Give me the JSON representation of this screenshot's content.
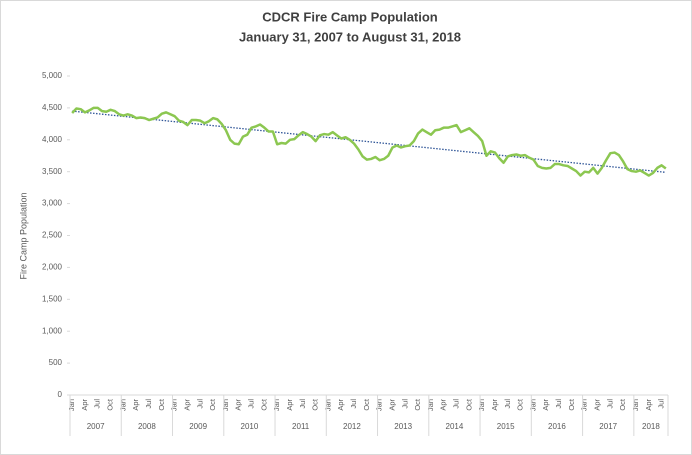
{
  "chart_data": {
    "type": "line",
    "title": "CDCR Fire Camp Population",
    "subtitle": "January 31, 2007 to August 31, 2018",
    "y_label": "Fire Camp Population",
    "color": "#8cc751",
    "trendline": {
      "start": 4450,
      "end": 3490,
      "color": "#2f5597"
    },
    "categories": [
      "Jan",
      null,
      null,
      "Apr",
      null,
      null,
      "Jul",
      null,
      null,
      "Oct",
      null,
      null,
      "Jan",
      null,
      null,
      "Apr",
      null,
      null,
      "Jul",
      null,
      null,
      "Oct",
      null,
      null,
      "Jan",
      null,
      null,
      "Apr",
      null,
      null,
      "Jul",
      null,
      null,
      "Oct",
      null,
      null,
      "Jan",
      null,
      null,
      "Apr",
      null,
      null,
      "Jul",
      null,
      null,
      "Oct",
      null,
      null,
      "Jan",
      null,
      null,
      "Apr",
      null,
      null,
      "Jul",
      null,
      null,
      "Oct",
      null,
      null,
      "Jan",
      null,
      null,
      "Apr",
      null,
      null,
      "Jul",
      null,
      null,
      "Oct",
      null,
      null,
      "Jan",
      null,
      null,
      "Apr",
      null,
      null,
      "Jul",
      null,
      null,
      "Oct",
      null,
      null,
      "Jan",
      null,
      null,
      "Apr",
      null,
      null,
      "Jul",
      null,
      null,
      "Oct",
      null,
      null,
      "Jan",
      null,
      null,
      "Apr",
      null,
      null,
      "Jul",
      null,
      null,
      "Oct",
      null,
      null,
      "Jan",
      null,
      null,
      "Apr",
      null,
      null,
      "Jul",
      null,
      null,
      "Oct",
      null,
      null,
      "Jan",
      null,
      null,
      "Apr",
      null,
      null,
      "Jul",
      null,
      null,
      "Oct",
      null,
      null,
      "Jan",
      null,
      null,
      "Apr",
      null,
      null,
      "Jul",
      null
    ],
    "groups": [
      "2007",
      "2008",
      "2009",
      "2010",
      "2011",
      "2012",
      "2013",
      "2014",
      "2015",
      "2016",
      "2017",
      "2018"
    ],
    "values": [
      4420,
      4490,
      4480,
      4430,
      4460,
      4500,
      4500,
      4450,
      4440,
      4470,
      4450,
      4400,
      4380,
      4400,
      4380,
      4340,
      4350,
      4340,
      4310,
      4330,
      4350,
      4410,
      4430,
      4400,
      4370,
      4300,
      4280,
      4230,
      4310,
      4310,
      4300,
      4260,
      4290,
      4340,
      4320,
      4250,
      4150,
      4000,
      3940,
      3930,
      4050,
      4080,
      4190,
      4210,
      4240,
      4190,
      4130,
      4130,
      3930,
      3950,
      3940,
      4000,
      4010,
      4070,
      4120,
      4090,
      4050,
      3980,
      4070,
      4090,
      4080,
      4120,
      4070,
      4020,
      4040,
      4000,
      3940,
      3850,
      3740,
      3690,
      3700,
      3730,
      3680,
      3700,
      3750,
      3880,
      3910,
      3880,
      3900,
      3910,
      3980,
      4100,
      4160,
      4120,
      4080,
      4150,
      4160,
      4190,
      4190,
      4210,
      4230,
      4120,
      4150,
      4180,
      4120,
      4060,
      3980,
      3750,
      3820,
      3800,
      3710,
      3640,
      3740,
      3760,
      3770,
      3750,
      3760,
      3720,
      3690,
      3590,
      3560,
      3550,
      3560,
      3620,
      3620,
      3600,
      3590,
      3550,
      3510,
      3440,
      3500,
      3490,
      3560,
      3470,
      3560,
      3680,
      3790,
      3800,
      3760,
      3660,
      3540,
      3510,
      3500,
      3520,
      3480,
      3440,
      3480,
      3560,
      3600,
      3550
    ],
    "ylim": [
      0,
      5000
    ],
    "yticks": [
      0,
      500,
      {
        "value": 1000,
        "label": "1,000"
      },
      {
        "value": 1500,
        "label": "1,500"
      },
      {
        "value": 2000,
        "label": "2,000"
      },
      {
        "value": 2500,
        "label": "2,500"
      },
      {
        "value": 3000,
        "label": "3,000"
      },
      {
        "value": 3500,
        "label": "3,500"
      },
      {
        "value": 4000,
        "label": "4,000"
      },
      {
        "value": 4500,
        "label": "4,500"
      },
      {
        "value": 5000,
        "label": "5,000"
      }
    ]
  }
}
